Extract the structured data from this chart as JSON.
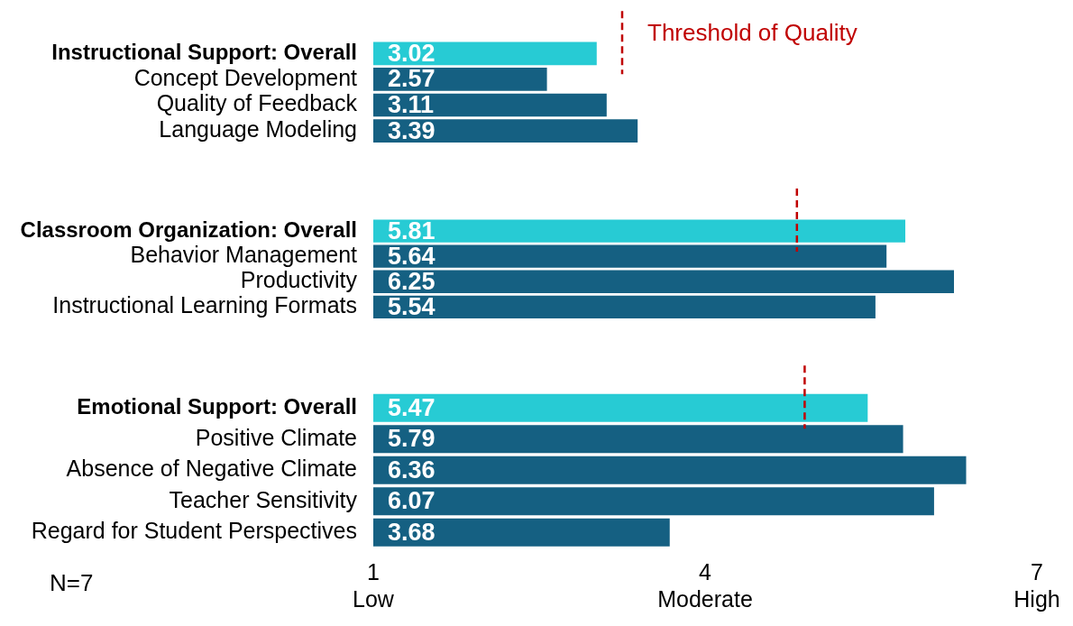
{
  "chart_data": [
    {
      "type": "bar",
      "orientation": "horizontal",
      "categories": [
        "Instructional Support: Overall",
        "Concept Development",
        "Quality of Feedback",
        "Language Modeling"
      ],
      "values": [
        3.02,
        2.57,
        3.11,
        3.39
      ],
      "colors": [
        "#27cbd4",
        "#156082",
        "#156082",
        "#156082"
      ],
      "data_labels": true,
      "xlim": [
        1,
        7
      ],
      "tick_labels": "y",
      "grid": false,
      "legend": false,
      "ref_lines": [
        {
          "axis": "x",
          "value": 3.25,
          "label": "Threshold of Quality",
          "color": "#c00000",
          "line_style": "dashed"
        }
      ]
    },
    {
      "type": "bar",
      "orientation": "horizontal",
      "categories": [
        "Classroom Organization: Overall",
        "Behavior Management",
        "Productivity",
        "Instructional Learning Formats"
      ],
      "values": [
        5.81,
        5.64,
        6.25,
        5.54
      ],
      "colors": [
        "#27cbd4",
        "#156082",
        "#156082",
        "#156082"
      ],
      "data_labels": true,
      "xlim": [
        1,
        7
      ],
      "tick_labels": "y",
      "grid": false,
      "legend": false,
      "ref_lines": [
        {
          "axis": "x",
          "value": 4.83,
          "color": "#c00000",
          "line_style": "dashed"
        }
      ]
    },
    {
      "type": "bar",
      "orientation": "horizontal",
      "categories": [
        "Emotional Support: Overall",
        "Positive Climate",
        "Absence of Negative Climate",
        "Teacher Sensitivity",
        "Regard for Student Perspectives"
      ],
      "values": [
        5.47,
        5.79,
        6.36,
        6.07,
        3.68
      ],
      "colors": [
        "#27cbd4",
        "#156082",
        "#156082",
        "#156082",
        "#156082"
      ],
      "data_labels": true,
      "xlim": [
        1,
        7
      ],
      "xticks": [
        {
          "value": 1,
          "label": "1\nLow"
        },
        {
          "value": 4,
          "label": "4\nModerate"
        },
        {
          "value": 7,
          "label": "7\nHigh"
        }
      ],
      "grid": false,
      "legend": false,
      "ref_lines": [
        {
          "axis": "x",
          "value": 4.9,
          "color": "#c00000",
          "line_style": "dashed"
        }
      ],
      "annotations": [
        "N=7"
      ]
    }
  ]
}
